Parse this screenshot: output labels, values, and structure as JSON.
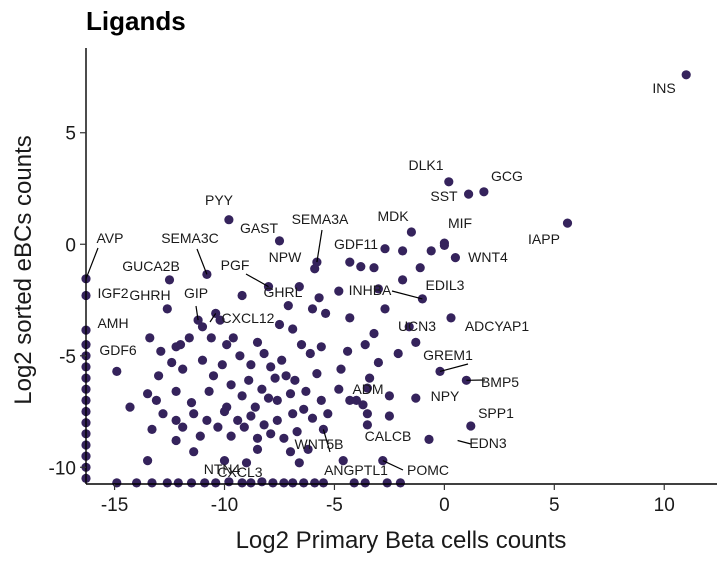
{
  "colors": {
    "point": "#35235c",
    "axis": "#000000",
    "text": "#1a1a1a"
  },
  "chart_data": {
    "type": "scatter",
    "title": "Ligands",
    "xlabel": "Log2 Primary Beta cells counts",
    "ylabel": "Log2 sorted eBCs counts",
    "xlim": [
      -16.3,
      12.4
    ],
    "ylim": [
      -10.75,
      8.8
    ],
    "xticks": [
      -15,
      -10,
      -5,
      0,
      5,
      10
    ],
    "xtick_labels": [
      "-15",
      "-10",
      "-5",
      "0",
      "5",
      "10"
    ],
    "yticks": [
      -10,
      -5,
      0,
      5
    ],
    "ytick_labels": [
      "-10",
      "-5",
      "0",
      "5"
    ],
    "grid": false,
    "legend": "none",
    "labeled_points": [
      {
        "label": "INS",
        "x": 11.0,
        "y": 7.6
      },
      {
        "label": "GCG",
        "x": 1.8,
        "y": 2.35
      },
      {
        "label": "SST",
        "x": 1.1,
        "y": 2.25
      },
      {
        "label": "DLK1",
        "x": 0.2,
        "y": 2.8
      },
      {
        "label": "IAPP",
        "x": 5.6,
        "y": 0.95
      },
      {
        "label": "MIF",
        "x": 0.0,
        "y": 0.05
      },
      {
        "label": "MDK",
        "x": -1.5,
        "y": 0.55
      },
      {
        "label": "WNT4",
        "x": 0.5,
        "y": -0.6
      },
      {
        "label": "PYY",
        "x": -9.8,
        "y": 1.1
      },
      {
        "label": "GAST",
        "x": -7.5,
        "y": 0.15
      },
      {
        "label": "SEMA3A",
        "x": -5.8,
        "y": -0.8
      },
      {
        "label": "GDF11",
        "x": -4.3,
        "y": -0.8
      },
      {
        "label": "NPW",
        "x": -5.9,
        "y": -1.1
      },
      {
        "label": "SEMA3C",
        "x": -10.8,
        "y": -1.35
      },
      {
        "label": "AVP",
        "x": -16.3,
        "y": -1.55
      },
      {
        "label": "GUCA2B",
        "x": -12.5,
        "y": -1.6
      },
      {
        "label": "PGF",
        "x": -8.0,
        "y": -1.9
      },
      {
        "label": "EDIL3",
        "x": -1.1,
        "y": -1.05
      },
      {
        "label": "INHBA",
        "x": -1.0,
        "y": -2.45
      },
      {
        "label": "GHRL",
        "x": -7.1,
        "y": -2.75
      },
      {
        "label": "GIP",
        "x": -11.2,
        "y": -3.4
      },
      {
        "label": "GHRH",
        "x": -12.6,
        "y": -2.9
      },
      {
        "label": "IGF2",
        "x": -16.3,
        "y": -2.3
      },
      {
        "label": "CXCL12",
        "x": -10.4,
        "y": -3.1
      },
      {
        "label": "ADCYAP1",
        "x": 0.3,
        "y": -3.3
      },
      {
        "label": "UCN3",
        "x": -1.3,
        "y": -4.4
      },
      {
        "label": "AMH",
        "x": -16.3,
        "y": -3.85
      },
      {
        "label": "GDF6",
        "x": -14.9,
        "y": -5.7
      },
      {
        "label": "GREM1",
        "x": -0.2,
        "y": -5.7
      },
      {
        "label": "BMP5",
        "x": 1.0,
        "y": -6.1
      },
      {
        "label": "NPY",
        "x": -1.3,
        "y": -6.9
      },
      {
        "label": "ADM",
        "x": -3.5,
        "y": -6.45
      },
      {
        "label": "SPP1",
        "x": 1.2,
        "y": -8.15
      },
      {
        "label": "CALCB",
        "x": -0.7,
        "y": -8.75
      },
      {
        "label": "EDN3",
        "x": 0.6,
        "y": -8.8
      },
      {
        "label": "WNT5B",
        "x": -5.5,
        "y": -8.3
      },
      {
        "label": "POMC",
        "x": -2.8,
        "y": -9.7
      },
      {
        "label": "ANGPTL1",
        "x": -4.6,
        "y": -9.7
      },
      {
        "label": "CXCL3",
        "x": -8.3,
        "y": -10.65
      },
      {
        "label": "NTN4",
        "x": -9.8,
        "y": -10.65
      }
    ],
    "points": [
      {
        "x": 11.0,
        "y": 7.6
      },
      {
        "x": 5.6,
        "y": 0.95
      },
      {
        "x": 1.8,
        "y": 2.35
      },
      {
        "x": 1.1,
        "y": 2.25
      },
      {
        "x": 0.2,
        "y": 2.8
      },
      {
        "x": 0.0,
        "y": 0.05
      },
      {
        "x": 0.0,
        "y": -0.05
      },
      {
        "x": -1.5,
        "y": 0.55
      },
      {
        "x": 0.5,
        "y": -0.6
      },
      {
        "x": -9.8,
        "y": 1.1
      },
      {
        "x": -7.5,
        "y": 0.15
      },
      {
        "x": -5.8,
        "y": -0.8
      },
      {
        "x": -5.9,
        "y": -1.1
      },
      {
        "x": -4.3,
        "y": -0.8
      },
      {
        "x": -10.8,
        "y": -1.35
      },
      {
        "x": -12.5,
        "y": -1.6
      },
      {
        "x": -16.3,
        "y": -1.55
      },
      {
        "x": -8.0,
        "y": -1.9
      },
      {
        "x": -1.1,
        "y": -1.05
      },
      {
        "x": -1.0,
        "y": -2.45
      },
      {
        "x": -7.1,
        "y": -2.75
      },
      {
        "x": -11.2,
        "y": -3.4
      },
      {
        "x": -12.6,
        "y": -2.9
      },
      {
        "x": -16.3,
        "y": -2.3
      },
      {
        "x": -10.4,
        "y": -3.1
      },
      {
        "x": 0.3,
        "y": -3.3
      },
      {
        "x": -1.3,
        "y": -4.4
      },
      {
        "x": -16.3,
        "y": -3.85
      },
      {
        "x": -14.9,
        "y": -5.7
      },
      {
        "x": -0.2,
        "y": -5.7
      },
      {
        "x": 1.0,
        "y": -6.1
      },
      {
        "x": -1.3,
        "y": -6.9
      },
      {
        "x": -3.5,
        "y": -6.45
      },
      {
        "x": 1.2,
        "y": -8.15
      },
      {
        "x": -0.7,
        "y": -8.75
      },
      {
        "x": -5.5,
        "y": -8.3
      },
      {
        "x": -2.8,
        "y": -9.7
      },
      {
        "x": -4.6,
        "y": -9.7
      },
      {
        "x": -8.3,
        "y": -10.65
      },
      {
        "x": -9.8,
        "y": -10.65
      },
      {
        "x": -2.7,
        "y": -0.2
      },
      {
        "x": -1.9,
        "y": -0.3
      },
      {
        "x": -0.6,
        "y": -0.3
      },
      {
        "x": -3.8,
        "y": -1.0
      },
      {
        "x": -3.2,
        "y": -1.05
      },
      {
        "x": -1.9,
        "y": -1.6
      },
      {
        "x": -3.0,
        "y": -2.0
      },
      {
        "x": -4.8,
        "y": -2.1
      },
      {
        "x": -5.7,
        "y": -2.4
      },
      {
        "x": -6.6,
        "y": -1.9
      },
      {
        "x": -6.0,
        "y": -2.9
      },
      {
        "x": -5.4,
        "y": -3.1
      },
      {
        "x": -4.3,
        "y": -3.3
      },
      {
        "x": -2.7,
        "y": -2.9
      },
      {
        "x": -1.6,
        "y": -3.7
      },
      {
        "x": -3.2,
        "y": -4.0
      },
      {
        "x": -2.1,
        "y": -4.9
      },
      {
        "x": -3.6,
        "y": -4.5
      },
      {
        "x": -4.4,
        "y": -4.8
      },
      {
        "x": -3.0,
        "y": -5.3
      },
      {
        "x": -4.7,
        "y": -5.6
      },
      {
        "x": -3.4,
        "y": -6.0
      },
      {
        "x": -2.5,
        "y": -6.8
      },
      {
        "x": -3.7,
        "y": -7.2
      },
      {
        "x": -4.8,
        "y": -6.5
      },
      {
        "x": -5.6,
        "y": -7.0
      },
      {
        "x": -4.3,
        "y": -7.0
      },
      {
        "x": -4.0,
        "y": -7.0
      },
      {
        "x": -3.5,
        "y": -7.6
      },
      {
        "x": -3.5,
        "y": -8.1
      },
      {
        "x": -2.5,
        "y": -7.7
      },
      {
        "x": -9.2,
        "y": -2.3
      },
      {
        "x": -10.2,
        "y": -3.4
      },
      {
        "x": -11.0,
        "y": -3.7
      },
      {
        "x": -11.6,
        "y": -4.2
      },
      {
        "x": -12.0,
        "y": -4.5
      },
      {
        "x": -12.2,
        "y": -4.6
      },
      {
        "x": -12.9,
        "y": -4.8
      },
      {
        "x": -13.4,
        "y": -4.2
      },
      {
        "x": -10.6,
        "y": -4.2
      },
      {
        "x": -9.9,
        "y": -4.5
      },
      {
        "x": -9.6,
        "y": -4.2
      },
      {
        "x": -8.5,
        "y": -4.4
      },
      {
        "x": -8.2,
        "y": -4.9
      },
      {
        "x": -7.5,
        "y": -3.6
      },
      {
        "x": -6.9,
        "y": -3.8
      },
      {
        "x": -6.5,
        "y": -4.5
      },
      {
        "x": -6.1,
        "y": -4.9
      },
      {
        "x": -5.6,
        "y": -4.6
      },
      {
        "x": -7.4,
        "y": -5.2
      },
      {
        "x": -7.9,
        "y": -5.5
      },
      {
        "x": -8.8,
        "y": -5.4
      },
      {
        "x": -9.3,
        "y": -5.0
      },
      {
        "x": -10.1,
        "y": -5.4
      },
      {
        "x": -11.0,
        "y": -5.2
      },
      {
        "x": -11.9,
        "y": -5.6
      },
      {
        "x": -12.4,
        "y": -5.3
      },
      {
        "x": -13.0,
        "y": -5.9
      },
      {
        "x": -10.5,
        "y": -5.9
      },
      {
        "x": -9.7,
        "y": -6.3
      },
      {
        "x": -8.9,
        "y": -6.1
      },
      {
        "x": -8.3,
        "y": -6.5
      },
      {
        "x": -7.7,
        "y": -6.0
      },
      {
        "x": -7.2,
        "y": -5.9
      },
      {
        "x": -6.8,
        "y": -6.1
      },
      {
        "x": -6.3,
        "y": -6.6
      },
      {
        "x": -5.8,
        "y": -5.8
      },
      {
        "x": -7.0,
        "y": -6.7
      },
      {
        "x": -7.6,
        "y": -7.0
      },
      {
        "x": -8.0,
        "y": -6.9
      },
      {
        "x": -8.6,
        "y": -7.3
      },
      {
        "x": -9.2,
        "y": -6.8
      },
      {
        "x": -9.9,
        "y": -7.3
      },
      {
        "x": -10.7,
        "y": -6.6
      },
      {
        "x": -11.5,
        "y": -7.1
      },
      {
        "x": -12.2,
        "y": -6.6
      },
      {
        "x": -13.1,
        "y": -7.0
      },
      {
        "x": -13.5,
        "y": -6.7
      },
      {
        "x": -12.8,
        "y": -7.6
      },
      {
        "x": -12.2,
        "y": -7.9
      },
      {
        "x": -11.4,
        "y": -7.6
      },
      {
        "x": -10.8,
        "y": -7.9
      },
      {
        "x": -10.0,
        "y": -7.5
      },
      {
        "x": -9.4,
        "y": -7.9
      },
      {
        "x": -8.8,
        "y": -7.7
      },
      {
        "x": -8.2,
        "y": -8.1
      },
      {
        "x": -7.6,
        "y": -7.9
      },
      {
        "x": -6.9,
        "y": -7.6
      },
      {
        "x": -6.4,
        "y": -7.4
      },
      {
        "x": -6.0,
        "y": -7.8
      },
      {
        "x": -5.3,
        "y": -7.6
      },
      {
        "x": -6.7,
        "y": -8.4
      },
      {
        "x": -7.3,
        "y": -8.7
      },
      {
        "x": -7.9,
        "y": -8.5
      },
      {
        "x": -8.5,
        "y": -8.7
      },
      {
        "x": -9.1,
        "y": -8.2
      },
      {
        "x": -9.7,
        "y": -8.6
      },
      {
        "x": -10.3,
        "y": -8.2
      },
      {
        "x": -11.1,
        "y": -8.6
      },
      {
        "x": -11.9,
        "y": -8.2
      },
      {
        "x": -12.2,
        "y": -8.8
      },
      {
        "x": -13.3,
        "y": -8.3
      },
      {
        "x": -14.3,
        "y": -7.3
      },
      {
        "x": -6.2,
        "y": -9.2
      },
      {
        "x": -7.0,
        "y": -9.3
      },
      {
        "x": -8.5,
        "y": -9.2
      },
      {
        "x": -11.4,
        "y": -9.3
      },
      {
        "x": -6.6,
        "y": -9.8
      },
      {
        "x": -9.0,
        "y": -9.8
      },
      {
        "x": -10.0,
        "y": -9.7
      },
      {
        "x": -13.5,
        "y": -9.7
      },
      {
        "x": -16.3,
        "y": -4.5
      },
      {
        "x": -16.3,
        "y": -5.0
      },
      {
        "x": -16.3,
        "y": -5.5
      },
      {
        "x": -16.3,
        "y": -6.0
      },
      {
        "x": -16.3,
        "y": -6.5
      },
      {
        "x": -16.3,
        "y": -7.0
      },
      {
        "x": -16.3,
        "y": -7.5
      },
      {
        "x": -16.3,
        "y": -8.0
      },
      {
        "x": -16.3,
        "y": -8.5
      },
      {
        "x": -16.3,
        "y": -9.0
      },
      {
        "x": -16.3,
        "y": -9.5
      },
      {
        "x": -16.3,
        "y": -10.0
      },
      {
        "x": -16.3,
        "y": -10.5
      },
      {
        "x": -14.9,
        "y": -10.7
      },
      {
        "x": -14.0,
        "y": -10.7
      },
      {
        "x": -13.3,
        "y": -10.7
      },
      {
        "x": -12.6,
        "y": -10.7
      },
      {
        "x": -12.1,
        "y": -10.7
      },
      {
        "x": -11.5,
        "y": -10.7
      },
      {
        "x": -10.9,
        "y": -10.7
      },
      {
        "x": -10.4,
        "y": -10.7
      },
      {
        "x": -9.2,
        "y": -10.7
      },
      {
        "x": -8.8,
        "y": -10.7
      },
      {
        "x": -7.8,
        "y": -10.7
      },
      {
        "x": -7.3,
        "y": -10.7
      },
      {
        "x": -6.9,
        "y": -10.7
      },
      {
        "x": -6.4,
        "y": -10.7
      },
      {
        "x": -5.9,
        "y": -10.7
      },
      {
        "x": -5.5,
        "y": -10.7
      },
      {
        "x": -4.1,
        "y": -10.7
      },
      {
        "x": -3.6,
        "y": -10.7
      },
      {
        "x": -2.6,
        "y": -10.7
      },
      {
        "x": -2.0,
        "y": -10.7
      }
    ]
  }
}
